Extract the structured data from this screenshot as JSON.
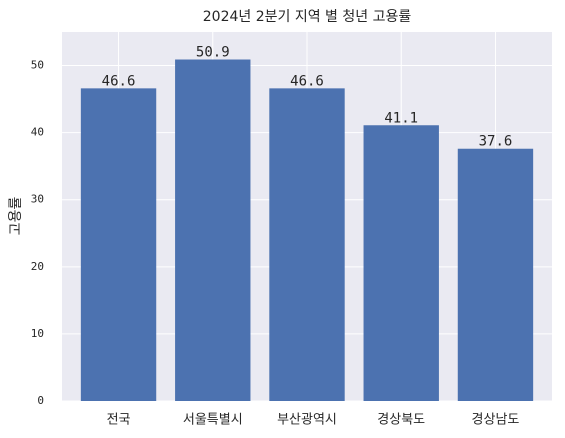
{
  "chart_data": {
    "type": "bar",
    "title": "2024년 2분기 지역 별 청년 고용률",
    "ylabel": "고용률",
    "categories": [
      "전국",
      "서울특별시",
      "부산광역시",
      "경상북도",
      "경상남도"
    ],
    "values": [
      46.6,
      50.9,
      46.6,
      41.1,
      37.6
    ],
    "color": "#4c72b0",
    "ylim": [
      0,
      55
    ],
    "yticks": [
      0,
      10,
      20,
      30,
      40,
      50
    ],
    "grid": true
  }
}
